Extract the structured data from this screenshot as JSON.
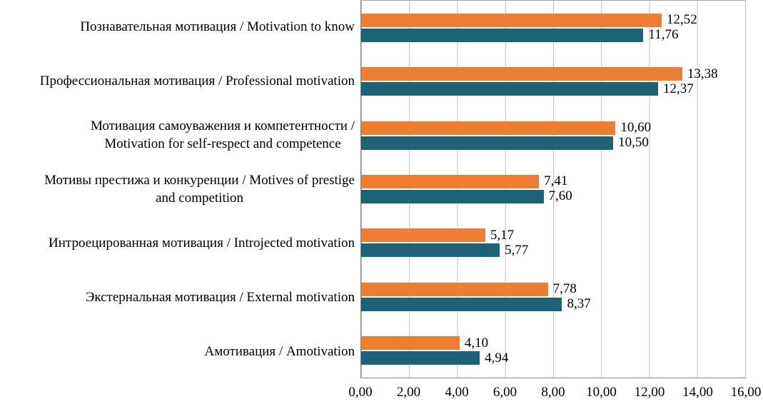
{
  "chart_data": {
    "type": "bar",
    "orientation": "horizontal",
    "title": "",
    "xlabel": "",
    "ylabel": "",
    "legend": "none",
    "grid": "vertical",
    "xlim": [
      0,
      16
    ],
    "x_ticks": [
      "0,00",
      "2,00",
      "4,00",
      "6,00",
      "8,00",
      "10,00",
      "12,00",
      "14,00",
      "16,00"
    ],
    "categories": [
      "Познавательная мотивация / Motivation to know",
      "Профессиональная мотивация / Professional motivation",
      "Мотивация самоуважения и компетентности /\nMotivation for self-respect and competence",
      "Мотивы престижа и конкуренции / Motives of prestige\nand competition",
      "Интроецированная мотивация / Introjected motivation",
      "Экстернальная мотивация / External motivation",
      "Амотивация / Amotivation"
    ],
    "series": [
      {
        "name": "series-orange",
        "color": "#ED7D31",
        "values": [
          12.52,
          13.38,
          10.6,
          7.41,
          5.17,
          7.78,
          4.1
        ],
        "labels": [
          "12,52",
          "13,38",
          "10,60",
          "7,41",
          "5,17",
          "7,78",
          "4,10"
        ]
      },
      {
        "name": "series-teal",
        "color": "#1D6378",
        "values": [
          11.76,
          12.37,
          10.5,
          7.6,
          5.77,
          8.37,
          4.94
        ],
        "labels": [
          "11,76",
          "12,37",
          "10,50",
          "7,60",
          "5,77",
          "8,37",
          "4,94"
        ]
      }
    ]
  }
}
